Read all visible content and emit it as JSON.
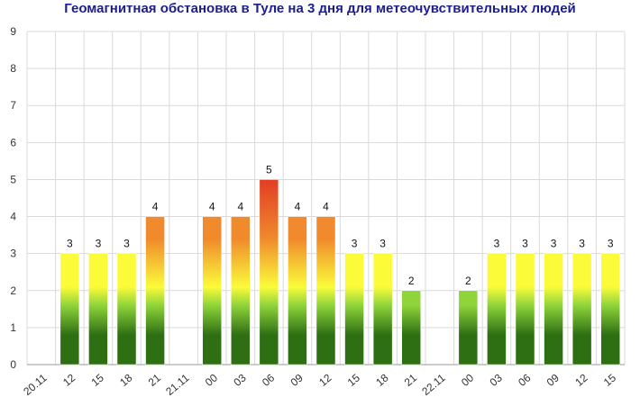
{
  "title": "Геомагнитная обстановка в Туле на 3 дня для метеочувствительных людей",
  "colors": {
    "title": "#1b1e8c",
    "grid": "#d9d9d9",
    "axis": "#999999",
    "bar_green": "#2e6f14",
    "bar_lightgreen": "#8fd43a",
    "bar_yellow": "#fbfb3a",
    "bar_orange": "#f08a2c",
    "bar_red": "#e23d24"
  },
  "chart_data": {
    "type": "bar",
    "title": "Геомагнитная обстановка в Туле на 3 дня для метеочувствительных людей",
    "xlabel": "",
    "ylabel": "",
    "ylim": [
      0,
      9
    ],
    "yticks": [
      "0",
      "1",
      "2",
      "3",
      "4",
      "5",
      "6",
      "7",
      "8",
      "9"
    ],
    "grid": true,
    "categories": [
      "20.11",
      "12",
      "15",
      "18",
      "21",
      "21.11",
      "00",
      "03",
      "06",
      "09",
      "12",
      "15",
      "18",
      "21",
      "22.11",
      "00",
      "03",
      "06",
      "09",
      "12",
      "15"
    ],
    "values": [
      null,
      3,
      3,
      3,
      4,
      null,
      4,
      4,
      5,
      4,
      4,
      3,
      3,
      2,
      null,
      2,
      3,
      3,
      3,
      3,
      3
    ],
    "data_labels": [
      "",
      "3",
      "3",
      "3",
      "4",
      "",
      "4",
      "4",
      "5",
      "4",
      "4",
      "3",
      "3",
      "2",
      "",
      "2",
      "3",
      "3",
      "3",
      "3",
      "3"
    ]
  }
}
